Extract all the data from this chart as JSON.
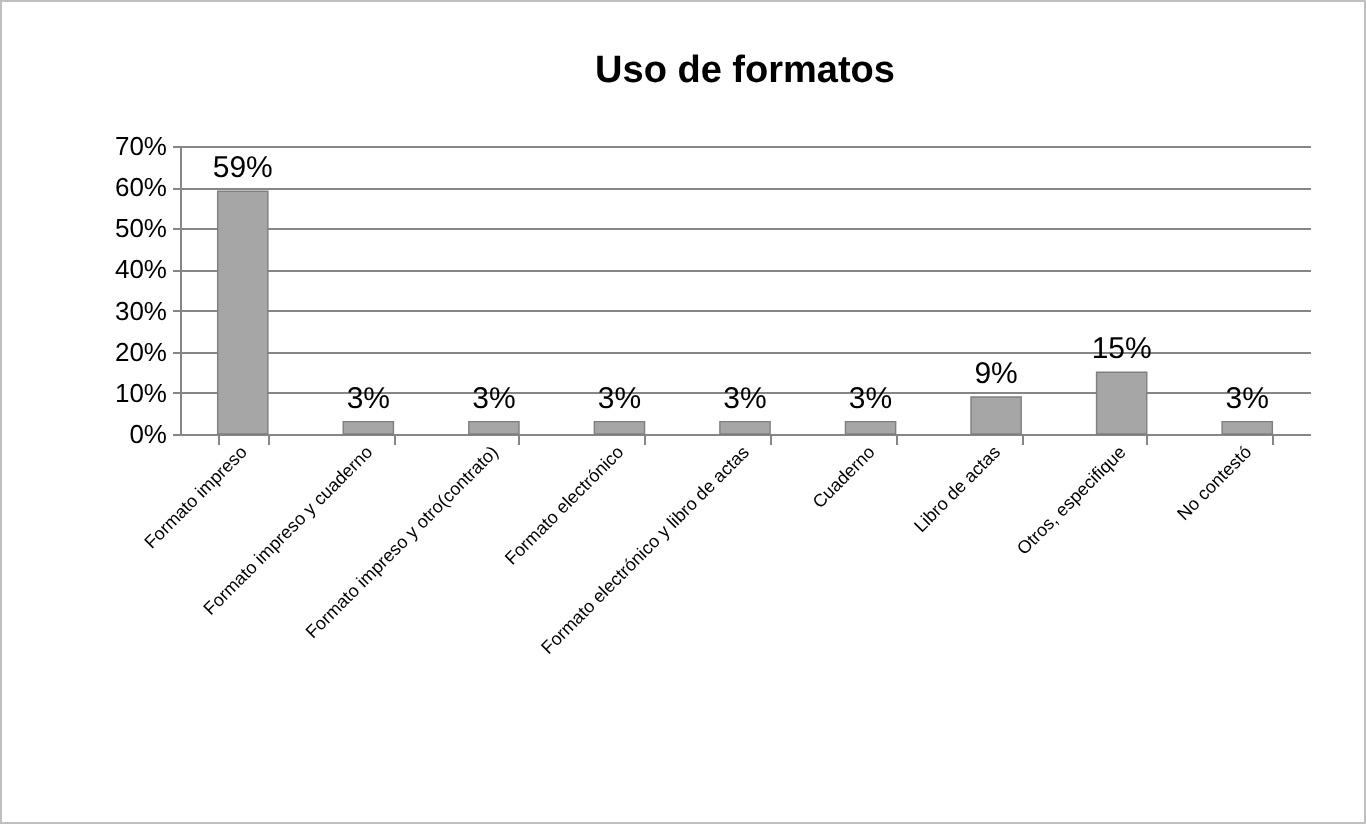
{
  "chart_data": {
    "type": "bar",
    "title": "Uso de formatos",
    "categories": [
      "Formato impreso",
      "Formato impreso y cuaderno",
      "Formato impreso y otro(contrato)",
      "Formato electrónico",
      "Formato electrónico y libro de actas",
      "Cuaderno",
      "Libro de actas",
      "Otros, especifique",
      "No contestó"
    ],
    "values": [
      59,
      3,
      3,
      3,
      3,
      3,
      9,
      15,
      3
    ],
    "value_labels": [
      "59%",
      "3%",
      "3%",
      "3%",
      "3%",
      "3%",
      "9%",
      "15%",
      "3%"
    ],
    "color": "#a6a6a6",
    "ylim": [
      0,
      70
    ],
    "yticks": [
      {
        "value": 0,
        "label": "0%"
      },
      {
        "value": 10,
        "label": "10%"
      },
      {
        "value": 20,
        "label": "20%"
      },
      {
        "value": 30,
        "label": "30%"
      },
      {
        "value": 40,
        "label": "40%"
      },
      {
        "value": 50,
        "label": "50%"
      },
      {
        "value": 60,
        "label": "60%"
      },
      {
        "value": 70,
        "label": "70%"
      }
    ],
    "grid": "y"
  }
}
